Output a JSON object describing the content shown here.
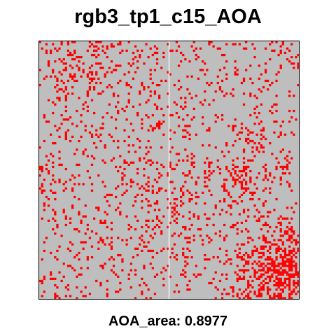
{
  "chart_data": {
    "type": "heatmap",
    "title": "rgb3_tp1_c15_AOA",
    "caption": "AOA_area: 0.8977",
    "xlabel": "",
    "ylabel": "",
    "axes_visible": false,
    "grid": false,
    "legend": "none",
    "background_color": "#bebebe",
    "mask_color": "#ff0000",
    "seam_color": "#ffffff",
    "seam_column_fraction": 0.5,
    "raster": {
      "rows": 120,
      "cols": 120,
      "seed": 9731,
      "base_density": 0.085,
      "hotspots": [
        {
          "col": 0.93,
          "row": 0.9,
          "spread": 0.1,
          "strength": 0.55
        },
        {
          "col": 0.78,
          "row": 0.55,
          "spread": 0.05,
          "strength": 0.28
        },
        {
          "col": 0.83,
          "row": 0.38,
          "spread": 0.04,
          "strength": 0.22
        },
        {
          "col": 0.2,
          "row": 0.08,
          "spread": 0.1,
          "strength": 0.12
        },
        {
          "col": 0.02,
          "row": 0.55,
          "spread": 0.06,
          "strength": 0.15
        },
        {
          "col": 0.5,
          "row": 0.6,
          "spread": 0.12,
          "strength": 0.08
        }
      ]
    }
  },
  "colors": {
    "frame": "#000000",
    "text": "#000000"
  }
}
